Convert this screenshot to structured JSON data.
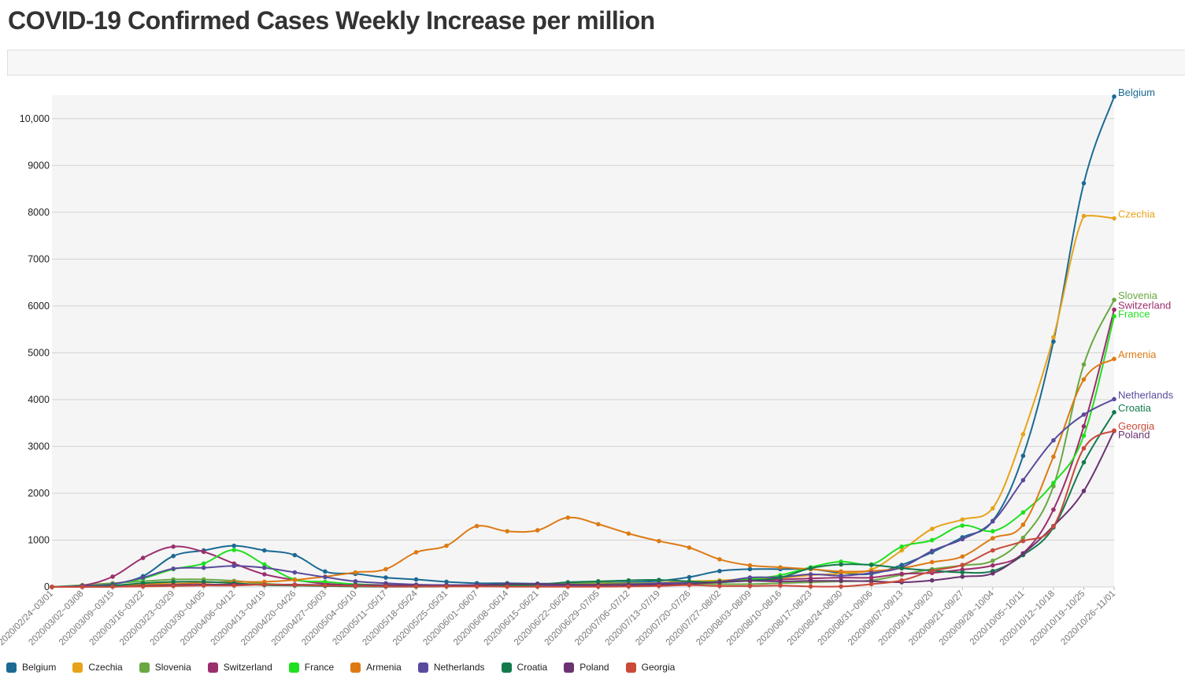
{
  "page": {
    "title": "COVID-19 Confirmed Cases Weekly Increase per million"
  },
  "chart_data": {
    "type": "line",
    "title": "COVID-19 Confirmed Cases Weekly Increase per million",
    "xlabel": "",
    "ylabel": "",
    "ylim": [
      0,
      10500
    ],
    "yticks": [
      0,
      1000,
      2000,
      3000,
      4000,
      5000,
      6000,
      7000,
      8000,
      9000,
      10000
    ],
    "ytick_labels": [
      "0",
      "1000",
      "2000",
      "3000",
      "4000",
      "5000",
      "6000",
      "7000",
      "8000",
      "9000",
      "10,000"
    ],
    "grid": true,
    "legend": "bottom",
    "categories": [
      "2020/02/24~03/01",
      "2020/03/02~03/08",
      "2020/03/09~03/15",
      "2020/03/16~03/22",
      "2020/03/23~03/29",
      "2020/03/30~04/05",
      "2020/04/06~04/12",
      "2020/04/13~04/19",
      "2020/04/20~04/26",
      "2020/04/27~05/03",
      "2020/05/04~05/10",
      "2020/05/11~05/17",
      "2020/05/18~05/24",
      "2020/05/25~05/31",
      "2020/06/01~06/07",
      "2020/06/08~06/14",
      "2020/06/15~06/21",
      "2020/06/22~06/28",
      "2020/06/29~07/05",
      "2020/07/06~07/12",
      "2020/07/13~07/19",
      "2020/07/20~07/26",
      "2020/07/27~08/02",
      "2020/08/03~08/09",
      "2020/08/10~08/16",
      "2020/08/17~08/23",
      "2020/08/24~08/30",
      "2020/08/31~09/06",
      "2020/09/07~09/13",
      "2020/09/14~09/20",
      "2020/09/21~09/27",
      "2020/09/28~10/04",
      "2020/10/05~10/11",
      "2020/10/12~10/18",
      "2020/10/19~10/25",
      "2020/10/26~11/01"
    ],
    "series": [
      {
        "name": "Belgium",
        "color": "#1b6a93",
        "values": [
          2,
          20,
          60,
          230,
          660,
          780,
          880,
          780,
          680,
          330,
          280,
          200,
          160,
          110,
          80,
          80,
          70,
          80,
          90,
          100,
          130,
          210,
          340,
          380,
          380,
          380,
          300,
          280,
          470,
          740,
          1060,
          1410,
          2800,
          5240,
          8620,
          10470
        ]
      },
      {
        "name": "Czechia",
        "color": "#e6a31a",
        "values": [
          0,
          5,
          30,
          60,
          100,
          110,
          80,
          50,
          40,
          35,
          20,
          20,
          25,
          30,
          30,
          40,
          50,
          60,
          80,
          80,
          90,
          120,
          140,
          170,
          190,
          250,
          290,
          370,
          780,
          1240,
          1440,
          1680,
          3260,
          5330,
          7920,
          7870
        ]
      },
      {
        "name": "Slovenia",
        "color": "#6aa843",
        "values": [
          0,
          40,
          80,
          120,
          160,
          160,
          130,
          70,
          40,
          20,
          10,
          10,
          10,
          10,
          10,
          20,
          40,
          60,
          90,
          80,
          80,
          70,
          60,
          60,
          80,
          100,
          120,
          140,
          260,
          380,
          460,
          560,
          1050,
          2150,
          4750,
          6130
        ]
      },
      {
        "name": "Switzerland",
        "color": "#9b2f6d",
        "values": [
          2,
          30,
          220,
          620,
          860,
          750,
          500,
          270,
          150,
          70,
          40,
          30,
          20,
          20,
          20,
          20,
          20,
          40,
          50,
          60,
          60,
          70,
          100,
          130,
          160,
          180,
          200,
          200,
          280,
          300,
          370,
          460,
          720,
          1650,
          3430,
          5920
        ]
      },
      {
        "name": "France",
        "color": "#1fe01f",
        "values": [
          1,
          10,
          60,
          180,
          380,
          500,
          790,
          480,
          160,
          110,
          60,
          40,
          30,
          30,
          30,
          30,
          30,
          30,
          40,
          50,
          70,
          90,
          120,
          170,
          250,
          420,
          540,
          480,
          860,
          1000,
          1310,
          1190,
          1590,
          2220,
          3230,
          5780
        ]
      },
      {
        "name": "Armenia",
        "color": "#dd7a14",
        "values": [
          0,
          10,
          20,
          50,
          60,
          90,
          110,
          110,
          150,
          220,
          310,
          380,
          740,
          880,
          1300,
          1190,
          1210,
          1480,
          1340,
          1140,
          980,
          840,
          590,
          460,
          420,
          380,
          330,
          340,
          400,
          530,
          650,
          1040,
          1330,
          2780,
          4430,
          4870
        ]
      },
      {
        "name": "Netherlands",
        "color": "#5a4a9c",
        "values": [
          0,
          20,
          60,
          200,
          390,
          410,
          450,
          410,
          310,
          210,
          120,
          80,
          50,
          40,
          40,
          40,
          40,
          30,
          30,
          50,
          80,
          90,
          110,
          200,
          210,
          270,
          240,
          300,
          420,
          770,
          1020,
          1400,
          2280,
          3130,
          3680,
          4010
        ]
      },
      {
        "name": "Croatia",
        "color": "#137a4e",
        "values": [
          0,
          5,
          30,
          80,
          110,
          110,
          80,
          40,
          30,
          20,
          10,
          5,
          5,
          10,
          30,
          40,
          50,
          100,
          120,
          140,
          150,
          120,
          100,
          140,
          200,
          400,
          480,
          470,
          400,
          350,
          310,
          340,
          680,
          1270,
          2660,
          3730
        ]
      },
      {
        "name": "Poland",
        "color": "#6b3372",
        "values": [
          0,
          1,
          5,
          20,
          40,
          50,
          50,
          50,
          50,
          40,
          40,
          40,
          30,
          30,
          40,
          60,
          60,
          50,
          40,
          40,
          50,
          60,
          110,
          130,
          120,
          130,
          130,
          120,
          100,
          140,
          220,
          290,
          710,
          1300,
          2050,
          3330
        ]
      },
      {
        "name": "Georgia",
        "color": "#c94a3a",
        "values": [
          0,
          1,
          5,
          10,
          20,
          30,
          30,
          50,
          40,
          30,
          20,
          10,
          10,
          10,
          10,
          5,
          5,
          5,
          5,
          10,
          20,
          40,
          20,
          20,
          30,
          10,
          10,
          60,
          140,
          340,
          470,
          780,
          980,
          1290,
          2960,
          3340
        ]
      }
    ]
  }
}
